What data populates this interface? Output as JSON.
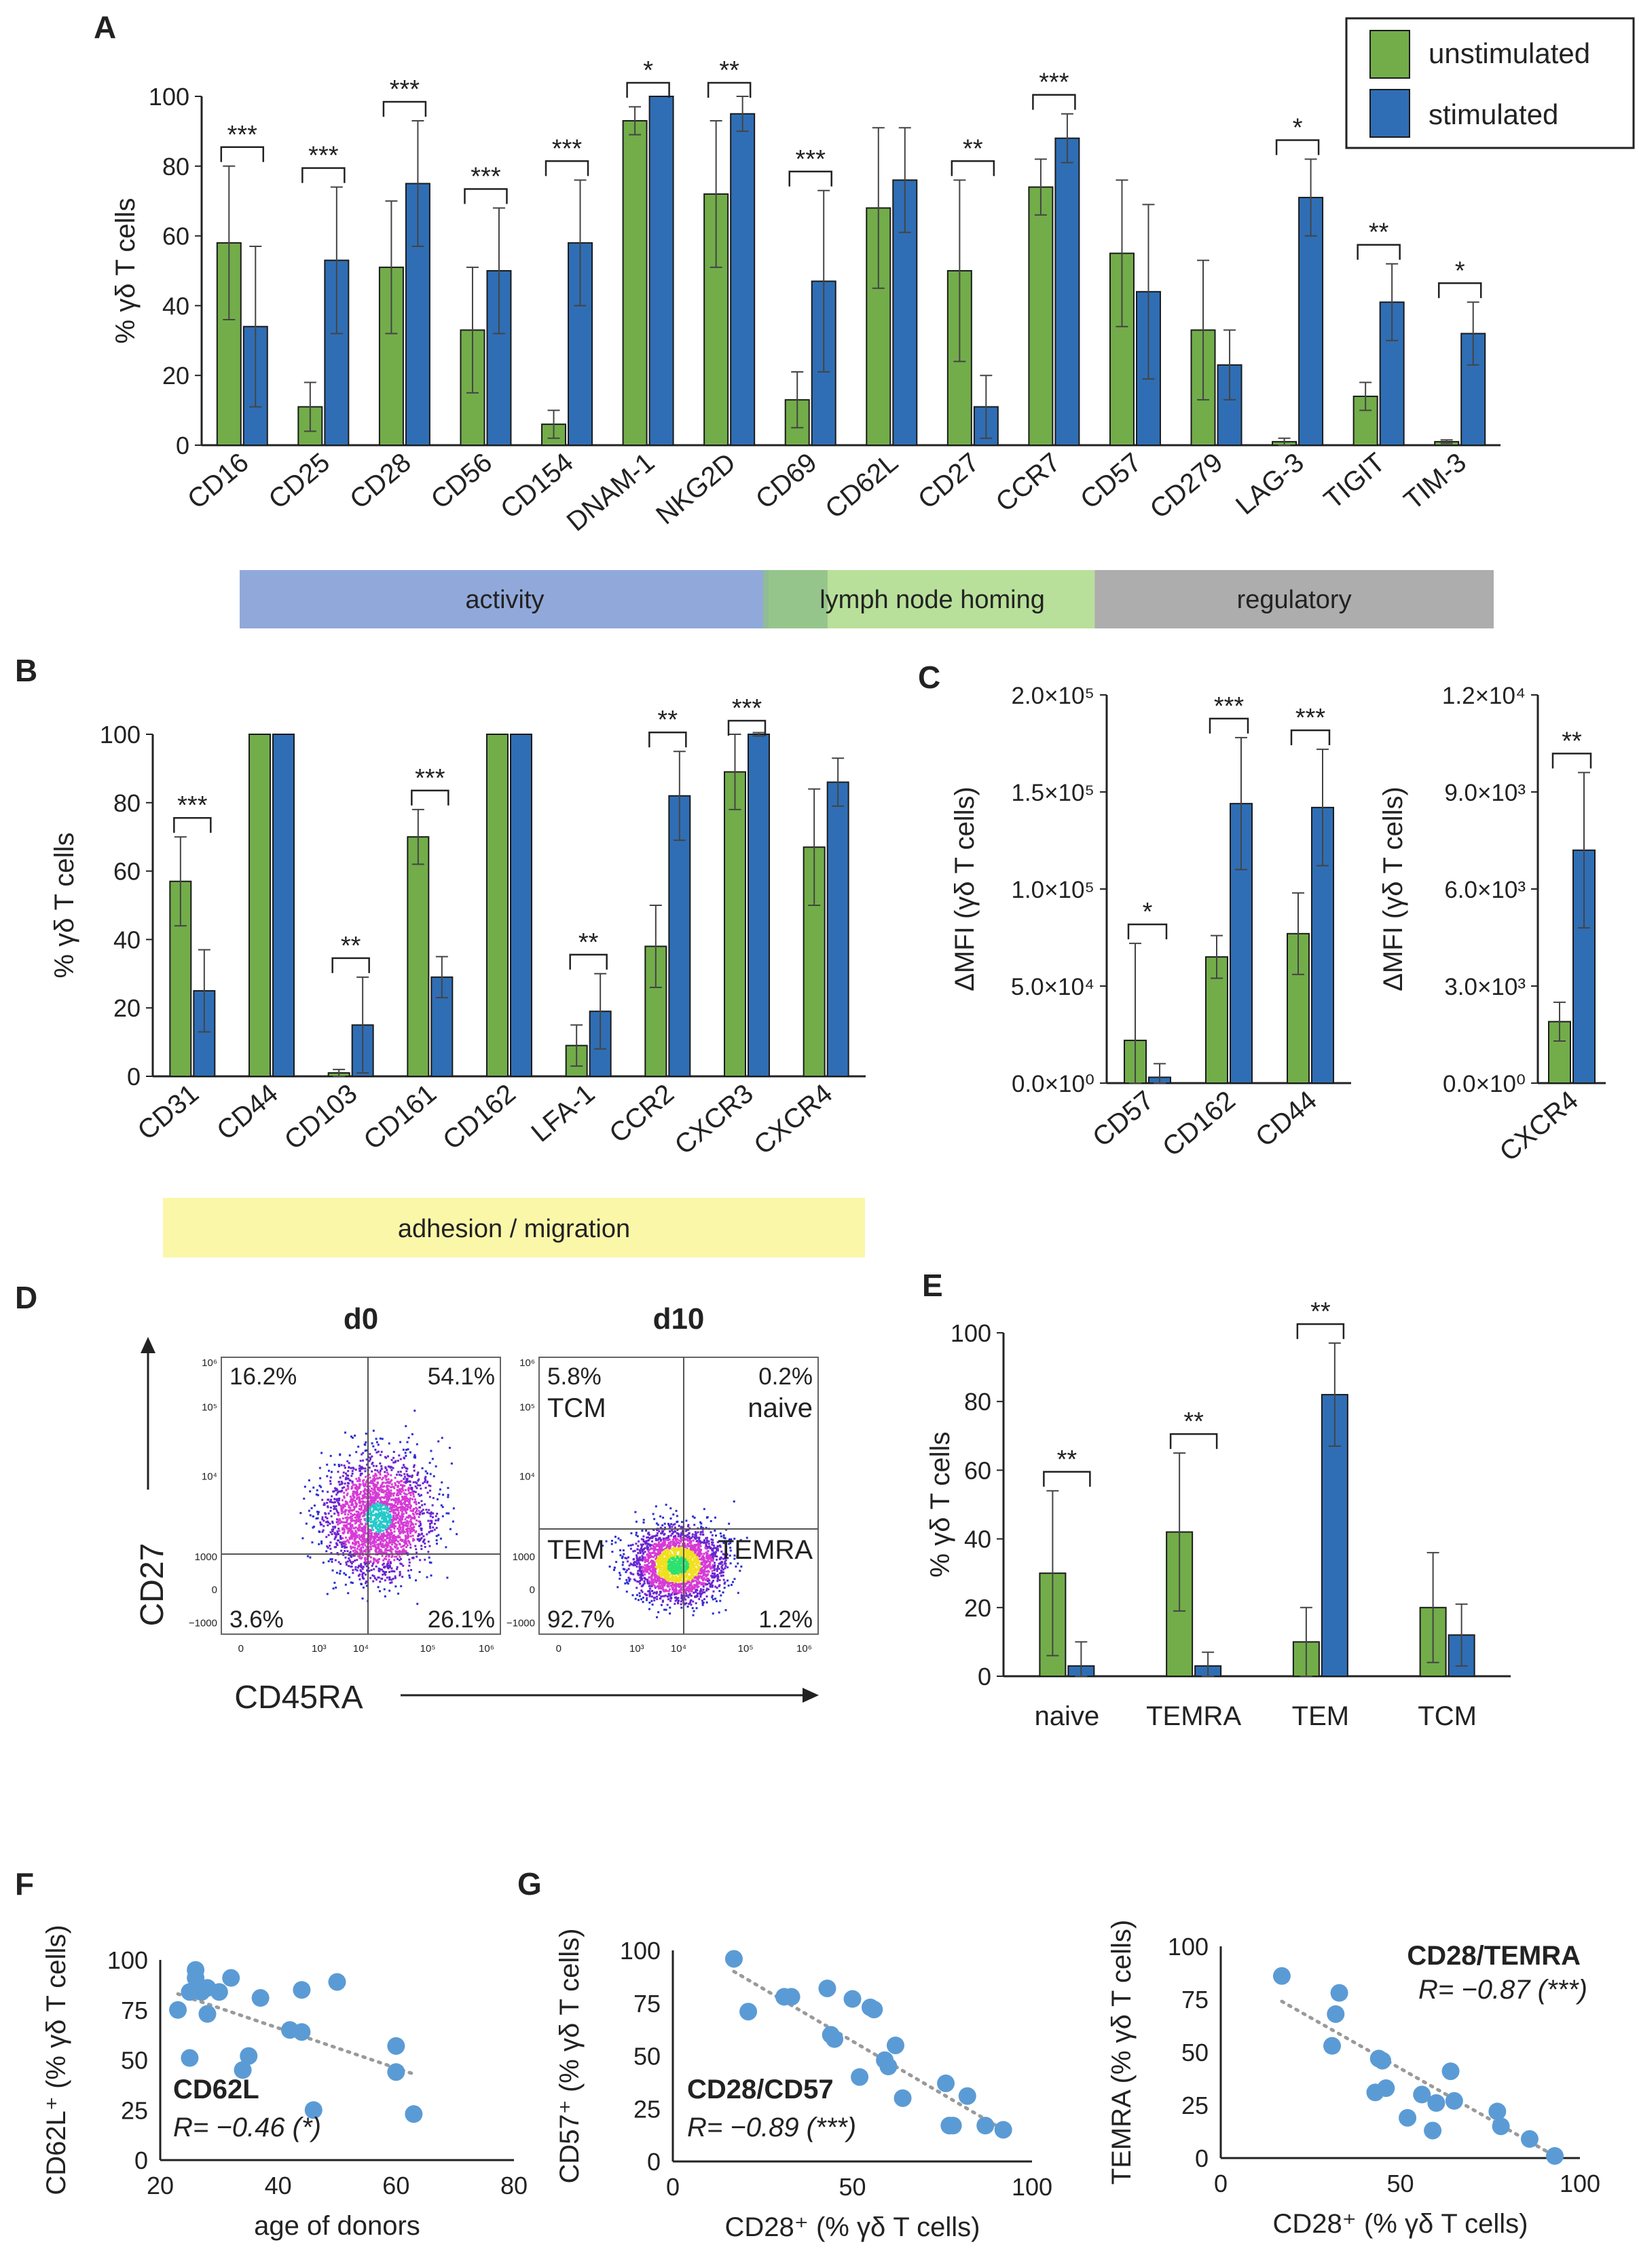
{
  "colors": {
    "unstimulated": "#72ad4a",
    "stimulated": "#2f6eb5",
    "scatter": "#5b9bd5",
    "activity": "#91a9da",
    "lymph": "#b8e09a",
    "lymph_overlap": "#8fbf8a",
    "regulatory": "#adadad",
    "adhesion": "#fbf7a9"
  },
  "legend": {
    "unstimulated": "unstimulated",
    "stimulated": "stimulated"
  },
  "chart_data": [
    {
      "id": "A",
      "type": "bar",
      "panel_label": "A",
      "ylabel": "% γδ T cells",
      "ylim": [
        0,
        100
      ],
      "yticks": [
        0,
        20,
        40,
        60,
        80,
        100
      ],
      "categories": [
        "CD16",
        "CD25",
        "CD28",
        "CD56",
        "CD154",
        "DNAM-1",
        "NKG2D",
        "CD69",
        "CD62L",
        "CD27",
        "CCR7",
        "CD57",
        "CD279",
        "LAG-3",
        "TIGIT",
        "TIM-3"
      ],
      "series": [
        {
          "name": "unstimulated",
          "values": [
            58,
            11,
            51,
            33,
            6,
            93,
            72,
            13,
            68,
            50,
            74,
            55,
            33,
            1,
            14,
            1
          ],
          "errors": [
            22,
            7,
            19,
            18,
            4,
            4,
            21,
            8,
            23,
            26,
            8,
            21,
            20,
            1,
            4,
            0.5
          ]
        },
        {
          "name": "stimulated",
          "values": [
            34,
            53,
            75,
            50,
            58,
            100,
            95,
            47,
            76,
            11,
            88,
            44,
            23,
            71,
            41,
            32
          ],
          "errors": [
            23,
            21,
            18,
            18,
            18,
            0,
            5,
            26,
            15,
            9,
            7,
            25,
            10,
            11,
            11,
            9
          ]
        }
      ],
      "significance": [
        "***",
        "***",
        "***",
        "***",
        "***",
        "*",
        "**",
        "***",
        "",
        "**",
        "***",
        "",
        "",
        "*",
        "**",
        "*"
      ],
      "groups": [
        {
          "label": "activity",
          "from": 0,
          "to": 6
        },
        {
          "label": "lymph node homing",
          "from": 7,
          "to": 10
        },
        {
          "label": "regulatory",
          "from": 11,
          "to": 15
        }
      ]
    },
    {
      "id": "B",
      "type": "bar",
      "panel_label": "B",
      "ylabel": "% γδ T cells",
      "ylim": [
        0,
        100
      ],
      "yticks": [
        0,
        20,
        40,
        60,
        80,
        100
      ],
      "categories": [
        "CD31",
        "CD44",
        "CD103",
        "CD161",
        "CD162",
        "LFA-1",
        "CCR2",
        "CXCR3",
        "CXCR4"
      ],
      "series": [
        {
          "name": "unstimulated",
          "values": [
            57,
            100,
            1,
            70,
            100,
            9,
            38,
            89,
            67
          ],
          "errors": [
            13,
            0,
            1,
            8,
            0,
            6,
            12,
            11,
            17
          ]
        },
        {
          "name": "stimulated",
          "values": [
            25,
            100,
            15,
            29,
            100,
            19,
            82,
            100,
            86
          ],
          "errors": [
            12,
            0,
            14,
            6,
            0,
            11,
            13,
            0.5,
            7
          ]
        }
      ],
      "significance": [
        "***",
        "",
        "**",
        "***",
        "",
        "**",
        "**",
        "***",
        ""
      ],
      "groups": [
        {
          "label": "adhesion / migration",
          "from": 0,
          "to": 8
        }
      ]
    },
    {
      "id": "C1",
      "type": "bar",
      "panel_label": "C",
      "ylabel": "ΔMFI (γδ T cells)",
      "ylim": [
        0,
        200000
      ],
      "yticks": [
        0,
        50000,
        100000,
        150000,
        200000
      ],
      "ytick_labels": [
        "0.0×10⁰",
        "5.0×10⁴",
        "1.0×10⁵",
        "1.5×10⁵",
        "2.0×10⁵"
      ],
      "categories": [
        "CD57",
        "CD162",
        "CD44"
      ],
      "series": [
        {
          "name": "unstimulated",
          "values": [
            22000,
            65000,
            77000
          ],
          "errors": [
            50000,
            11000,
            21000
          ]
        },
        {
          "name": "stimulated",
          "values": [
            3000,
            144000,
            142000
          ],
          "errors": [
            7000,
            34000,
            30000
          ]
        }
      ],
      "significance": [
        "*",
        "***",
        "***"
      ]
    },
    {
      "id": "C2",
      "type": "bar",
      "ylabel": "ΔMFI (γδ T cells)",
      "ylim": [
        0,
        12000
      ],
      "yticks": [
        0,
        3000,
        6000,
        9000,
        12000
      ],
      "ytick_labels": [
        "0.0×10⁰",
        "3.0×10³",
        "6.0×10³",
        "9.0×10³",
        "1.2×10⁴"
      ],
      "categories": [
        "CXCR4"
      ],
      "series": [
        {
          "name": "unstimulated",
          "values": [
            1900
          ],
          "errors": [
            600
          ]
        },
        {
          "name": "stimulated",
          "values": [
            7200
          ],
          "errors": [
            2400
          ]
        }
      ],
      "significance": [
        "**"
      ]
    },
    {
      "id": "E",
      "type": "bar",
      "panel_label": "E",
      "ylabel": "% γδ T cells",
      "ylim": [
        0,
        100
      ],
      "yticks": [
        0,
        20,
        40,
        60,
        80,
        100
      ],
      "categories": [
        "naive",
        "TEMRA",
        "TEM",
        "TCM"
      ],
      "series": [
        {
          "name": "unstimulated",
          "values": [
            30,
            42,
            10,
            20
          ],
          "errors": [
            24,
            23,
            10,
            16
          ]
        },
        {
          "name": "stimulated",
          "values": [
            3,
            3,
            82,
            12
          ],
          "errors": [
            7,
            4,
            15,
            9
          ]
        }
      ],
      "significance": [
        "**",
        "**",
        "**",
        ""
      ]
    },
    {
      "id": "F",
      "type": "scatter",
      "panel_label": "F",
      "title": "CD62L",
      "stat": "R= −0.46 (*)",
      "xlabel": "age of donors",
      "ylabel": "CD62L⁺ (% γδ T cells)",
      "xlim": [
        20,
        80
      ],
      "ylim": [
        0,
        100
      ],
      "xticks": [
        20,
        40,
        60,
        80
      ],
      "yticks": [
        0,
        25,
        50,
        75,
        100
      ],
      "x": [
        23,
        25,
        25,
        26,
        26,
        27,
        28,
        28,
        30,
        32,
        34,
        35,
        37,
        42,
        44,
        44,
        46,
        50,
        60,
        60,
        63
      ],
      "y": [
        75,
        51,
        84,
        91,
        95,
        84,
        73,
        86,
        84,
        91,
        45,
        52,
        81,
        65,
        85,
        64,
        25,
        89,
        57,
        44,
        23
      ],
      "trend": [
        [
          23,
          83
        ],
        [
          63,
          43
        ]
      ]
    },
    {
      "id": "G1",
      "type": "scatter",
      "panel_label": "G",
      "title": "CD28/CD57",
      "stat": "R= −0.89 (***)",
      "xlabel": "CD28⁺ (% γδ T cells)",
      "ylabel": "CD57⁺ (% γδ T cells)",
      "xlim": [
        0,
        100
      ],
      "ylim": [
        0,
        100
      ],
      "xticks": [
        0,
        50,
        100
      ],
      "yticks": [
        0,
        25,
        50,
        75,
        100
      ],
      "x": [
        17,
        21,
        31,
        33,
        43,
        44,
        45,
        50,
        52,
        55,
        56,
        59,
        60,
        62,
        64,
        76,
        77,
        78,
        82,
        87,
        92
      ],
      "y": [
        96,
        71,
        78,
        78,
        82,
        60,
        58,
        77,
        40,
        73,
        72,
        48,
        45,
        55,
        30,
        37,
        17,
        17,
        31,
        17,
        15
      ],
      "trend": [
        [
          17,
          90
        ],
        [
          92,
          15
        ]
      ]
    },
    {
      "id": "G2",
      "type": "scatter",
      "title": "CD28/TEMRA",
      "stat": "R= −0.87 (***)",
      "xlabel": "CD28⁺ (% γδ T cells)",
      "ylabel": "TEMRA (% γδ T cells)",
      "xlim": [
        0,
        100
      ],
      "ylim": [
        0,
        100
      ],
      "xticks": [
        0,
        50,
        100
      ],
      "yticks": [
        0,
        25,
        50,
        75,
        100
      ],
      "x": [
        17,
        31,
        32,
        33,
        43,
        44,
        45,
        46,
        52,
        56,
        59,
        60,
        64,
        65,
        77,
        78,
        86,
        93
      ],
      "y": [
        86,
        53,
        68,
        78,
        31,
        47,
        46,
        33,
        19,
        30,
        13,
        26,
        41,
        27,
        22,
        15,
        9,
        1
      ],
      "trend": [
        [
          17,
          74
        ],
        [
          93,
          1
        ]
      ]
    },
    {
      "id": "D",
      "type": "scatter",
      "panel_label": "D",
      "xlabel": "CD45RA",
      "ylabel": "CD27",
      "plots": [
        {
          "title": "d0",
          "quadrants": {
            "top_left": "16.2%",
            "top_right": "54.1%",
            "bottom_left": "3.6%",
            "bottom_right": "26.1%"
          }
        },
        {
          "title": "d10",
          "quadrants": {
            "top_left": "5.8%",
            "top_right": "0.2%",
            "bottom_left": "92.7%",
            "bottom_right": "1.2%"
          },
          "quadrant_names": {
            "top_left": "TCM",
            "top_right": "naive",
            "bottom_left": "TEM",
            "bottom_right": "TEMRA"
          }
        }
      ],
      "xtick_labels": [
        "0",
        "10³",
        "10⁴",
        "10⁵",
        "10⁶"
      ],
      "ytick_labels": [
        "10⁶",
        "10⁵",
        "10⁴",
        "1000",
        "0",
        "−1000"
      ]
    }
  ]
}
